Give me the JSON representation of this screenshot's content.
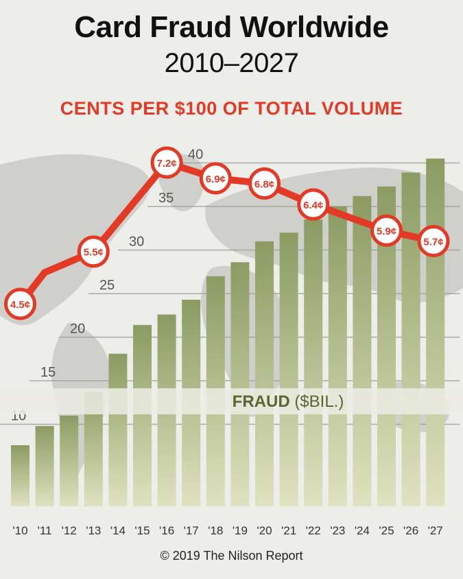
{
  "header": {
    "title_line1": "Card Fraud Worldwide",
    "title_line2": "2010–2027",
    "subtitle": "CENTS PER $100 OF TOTAL VOLUME"
  },
  "footer": {
    "credit": "© 2019 The Nilson Report"
  },
  "colors": {
    "line": "#e23a25",
    "bar_top": "#8b9b62",
    "bar_bottom": "#dfe2bf",
    "label_olive": "#59672f"
  },
  "chart_data": {
    "type": "bar",
    "categories": [
      "'10",
      "'11",
      "'12",
      "'13",
      "'14",
      "'15",
      "'16",
      "'17",
      "'18",
      "'19",
      "'20",
      "'21",
      "'22",
      "'23",
      "'24",
      "'25",
      "'26",
      "'27"
    ],
    "series": [
      {
        "name": "FRAUD ($BIL.)",
        "type": "bar",
        "values": [
          7.6,
          9.8,
          11.0,
          13.7,
          18.1,
          21.4,
          22.6,
          24.3,
          27.0,
          28.6,
          31.0,
          32.0,
          33.5,
          35.0,
          36.2,
          37.3,
          38.9,
          40.5
        ]
      },
      {
        "name": "CENTS PER $100 OF TOTAL VOLUME",
        "type": "line",
        "values": [
          4.5,
          5.5,
          7.2,
          6.9,
          6.8,
          6.4,
          5.9,
          5.7
        ],
        "labels": [
          "4.5¢",
          "5.5¢",
          "7.2¢",
          "6.9¢",
          "6.8¢",
          "6.4¢",
          "5.9¢",
          "5.7¢"
        ],
        "x": [
          "'10",
          "'13",
          "'16",
          "'18",
          "'20",
          "'22",
          "'25",
          "'27"
        ],
        "kink_between": [
          {
            "x": "'11",
            "value": 5.1
          }
        ]
      }
    ],
    "yticks": [
      10,
      15,
      20,
      25,
      30,
      35,
      40
    ],
    "ylim": [
      5,
      42
    ],
    "bar_label": "FRAUD",
    "bar_label_unit": "($BIL.)"
  }
}
